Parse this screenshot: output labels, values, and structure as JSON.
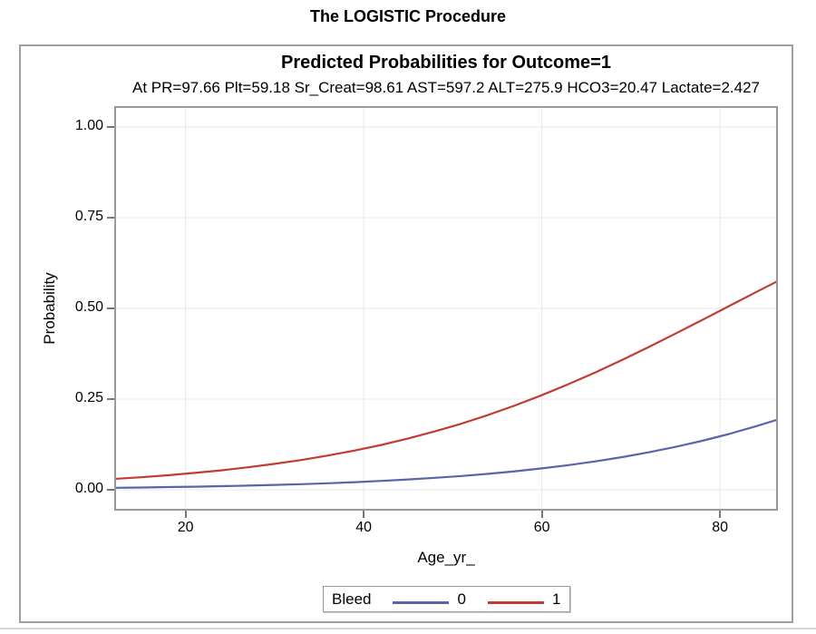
{
  "page": {
    "procedure_title": "The LOGISTIC Procedure"
  },
  "figure": {
    "title": "Predicted Probabilities for Outcome=1",
    "subtitle": "At PR=97.66 Plt=59.18 Sr_Creat=98.61 AST=597.2 ALT=275.9 HCO3=20.47 Lactate=2.427",
    "x_axis": {
      "label": "Age_yr_",
      "tick_labels": [
        "20",
        "40",
        "60",
        "80"
      ]
    },
    "y_axis": {
      "label": "Probability",
      "tick_labels": [
        "1.00",
        "0.75",
        "0.50",
        "0.25",
        "0.00"
      ]
    },
    "legend": {
      "title": "Bleed",
      "entries": [
        {
          "label": "0",
          "color": "#5a64aa"
        },
        {
          "label": "1",
          "color": "#c23b32"
        }
      ]
    }
  },
  "colors": {
    "gridline": "#e7e7e7",
    "wall_frame": "#999999",
    "figure_border": "#a0a0a0",
    "tick": "#777777",
    "bottom_rule": "#d6d6d6",
    "series_blue": "#5a64aa",
    "series_red": "#c23b32"
  },
  "chart_data": {
    "type": "line",
    "title": "Predicted Probabilities for Outcome=1",
    "subtitle": "At PR=97.66 Plt=59.18 Sr_Creat=98.61 AST=597.2 ALT=275.9 HCO3=20.47 Lactate=2.427",
    "xlabel": "Age_yr_",
    "ylabel": "Probability",
    "xlim": [
      12,
      86.5
    ],
    "ylim": [
      0,
      1
    ],
    "x_ticks": [
      20,
      40,
      60,
      80
    ],
    "y_ticks": [
      1.0,
      0.75,
      0.5,
      0.25,
      0.0
    ],
    "grid": true,
    "legend_title": "Bleed",
    "legend_position": "bottom",
    "x": [
      12,
      15,
      18,
      21,
      24,
      27,
      30,
      33,
      36,
      39,
      42,
      45,
      48,
      51,
      54,
      57,
      60,
      63,
      66,
      69,
      72,
      75,
      78,
      81,
      84,
      86.5
    ],
    "series": [
      {
        "name": "0",
        "color": "#5a64aa",
        "values": [
          0.0054,
          0.0063,
          0.0074,
          0.0086,
          0.0099,
          0.0116,
          0.0134,
          0.0156,
          0.0181,
          0.0211,
          0.0244,
          0.0284,
          0.0329,
          0.0381,
          0.0441,
          0.051,
          0.0589,
          0.0679,
          0.0782,
          0.0899,
          0.1032,
          0.1182,
          0.135,
          0.1538,
          0.1747,
          0.1938
        ]
      },
      {
        "name": "1",
        "color": "#c23b32",
        "values": [
          0.0299,
          0.0346,
          0.0401,
          0.0464,
          0.0536,
          0.0619,
          0.0714,
          0.0821,
          0.0944,
          0.1082,
          0.1238,
          0.1414,
          0.1609,
          0.1825,
          0.2064,
          0.2325,
          0.2608,
          0.2912,
          0.3236,
          0.3578,
          0.3935,
          0.4305,
          0.4681,
          0.5062,
          0.5442,
          0.5755
        ]
      }
    ]
  }
}
